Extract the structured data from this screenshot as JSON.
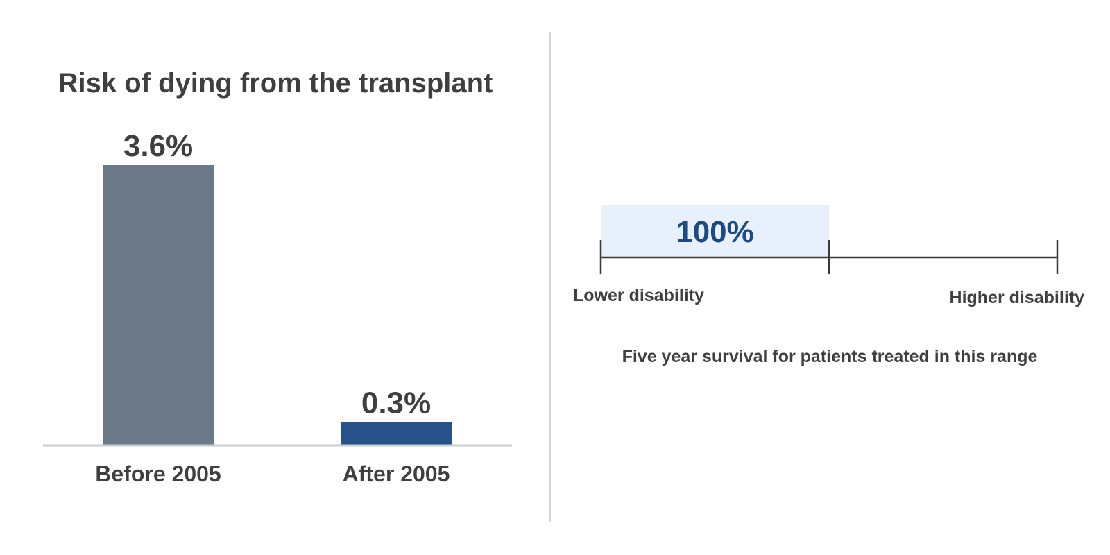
{
  "chart_data": [
    {
      "type": "bar",
      "title": "Risk of dying from the transplant",
      "categories": [
        "Before 2005",
        "After 2005"
      ],
      "values": [
        3.6,
        0.3
      ],
      "value_labels": [
        "3.6%",
        "0.3%"
      ],
      "unit": "%",
      "ylim": [
        0,
        3.6
      ],
      "grid": false,
      "colors": [
        "#6b7a86",
        "#285289"
      ]
    },
    {
      "type": "range",
      "scale_left_label": "Lower disability",
      "scale_right_label": "Higher disability",
      "highlight_range": [
        0,
        0.5
      ],
      "highlight_value": 100,
      "highlight_value_label": "100%",
      "caption": "Five year survival for patients treated in this range",
      "colors": {
        "highlight_fill": "#e8f1fb",
        "highlight_text": "#1d4a80",
        "axis": "#3a3a3a"
      }
    }
  ],
  "colors": {
    "text": "#3f3f3f",
    "baseline": "#c9ccd1",
    "divider": "#d4d6d9"
  }
}
